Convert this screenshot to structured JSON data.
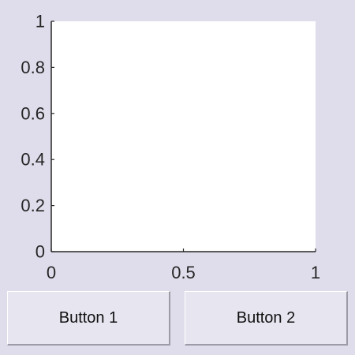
{
  "colors": {
    "figure_background": "#DFDDEB",
    "axes_background": "#FFFFFF",
    "axis_line": "#262626",
    "button_face": "#E6E5F0"
  },
  "chart_data": {
    "type": "line",
    "series": [],
    "xlim": [
      0,
      1
    ],
    "ylim": [
      0,
      1
    ],
    "x_ticks": [
      0,
      0.5,
      1
    ],
    "x_tick_labels": [
      "0",
      "0.5",
      "1"
    ],
    "y_ticks": [
      0,
      0.2,
      0.4,
      0.6,
      0.8,
      1
    ],
    "y_tick_labels": [
      "0",
      "0.2",
      "0.4",
      "0.6",
      "0.8",
      "1"
    ],
    "grid": false,
    "title": "",
    "xlabel": "",
    "ylabel": ""
  },
  "buttons": {
    "button1_label": "Button 1",
    "button2_label": "Button 2"
  }
}
